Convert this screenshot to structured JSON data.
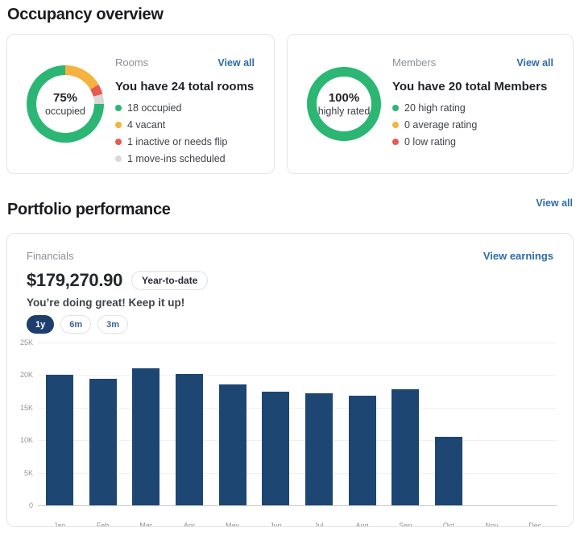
{
  "colors": {
    "green": "#2bb673",
    "orange": "#f5b23e",
    "red": "#e85a50",
    "gray": "#d9d9d9",
    "navy": "#1d4673",
    "link": "#2d6cab",
    "heading": "#191b1e",
    "muted": "#8b9096",
    "border": "#e3e4e7",
    "pill-active": "#1e3f6e",
    "pill-text": "#3d6499"
  },
  "occupancy": {
    "section_title": "Occupancy overview",
    "rooms": {
      "label": "Rooms",
      "view_all": "View all",
      "title": "You have 24 total rooms",
      "donut": {
        "percent": "75%",
        "caption": "occupied"
      },
      "donut_segments": [
        {
          "color": "orange",
          "value": 4
        },
        {
          "color": "red",
          "value": 1
        },
        {
          "color": "gray",
          "value": 1
        },
        {
          "color": "green",
          "value": 18
        }
      ],
      "legend": [
        {
          "color": "green",
          "label": "18 occupied"
        },
        {
          "color": "orange",
          "label": "4 vacant"
        },
        {
          "color": "red",
          "label": "1 inactive or needs flip"
        },
        {
          "color": "gray",
          "label": "1 move-ins scheduled"
        }
      ]
    },
    "members": {
      "label": "Members",
      "view_all": "View all",
      "title": "You have 20 total Members",
      "donut": {
        "percent": "100%",
        "caption": "highly rated"
      },
      "donut_segments": [
        {
          "color": "green",
          "value": 20
        }
      ],
      "legend": [
        {
          "color": "green",
          "label": "20 high rating"
        },
        {
          "color": "orange",
          "label": "0 average rating"
        },
        {
          "color": "red",
          "label": "0 low rating"
        }
      ]
    }
  },
  "portfolio": {
    "section_title": "Portfolio performance",
    "view_all": "View all"
  },
  "financials": {
    "label": "Financials",
    "view_earnings": "View earnings",
    "amount": "$179,270.90",
    "period_badge": "Year-to-date",
    "encouragement": "You’re doing great! Keep it up!",
    "range_tabs": [
      {
        "label": "1y",
        "active": true
      },
      {
        "label": "6m",
        "active": false
      },
      {
        "label": "3m",
        "active": false
      }
    ]
  },
  "chart_data": {
    "type": "bar",
    "title": "",
    "xlabel": "",
    "ylabel": "",
    "categories": [
      "Jan",
      "Feb",
      "Mar",
      "Apr",
      "May",
      "Jun",
      "Jul",
      "Aug",
      "Sep",
      "Oct",
      "Nov",
      "Dec"
    ],
    "values": [
      20000,
      19400,
      21000,
      20200,
      18600,
      17500,
      17200,
      16800,
      17800,
      10500,
      0,
      0
    ],
    "ylim": [
      0,
      25000
    ],
    "yticks": [
      "25K",
      "20K",
      "15K",
      "10K",
      "5K",
      "0"
    ],
    "bar_color": "#1d4673",
    "grid": true,
    "legend_position": "none"
  }
}
